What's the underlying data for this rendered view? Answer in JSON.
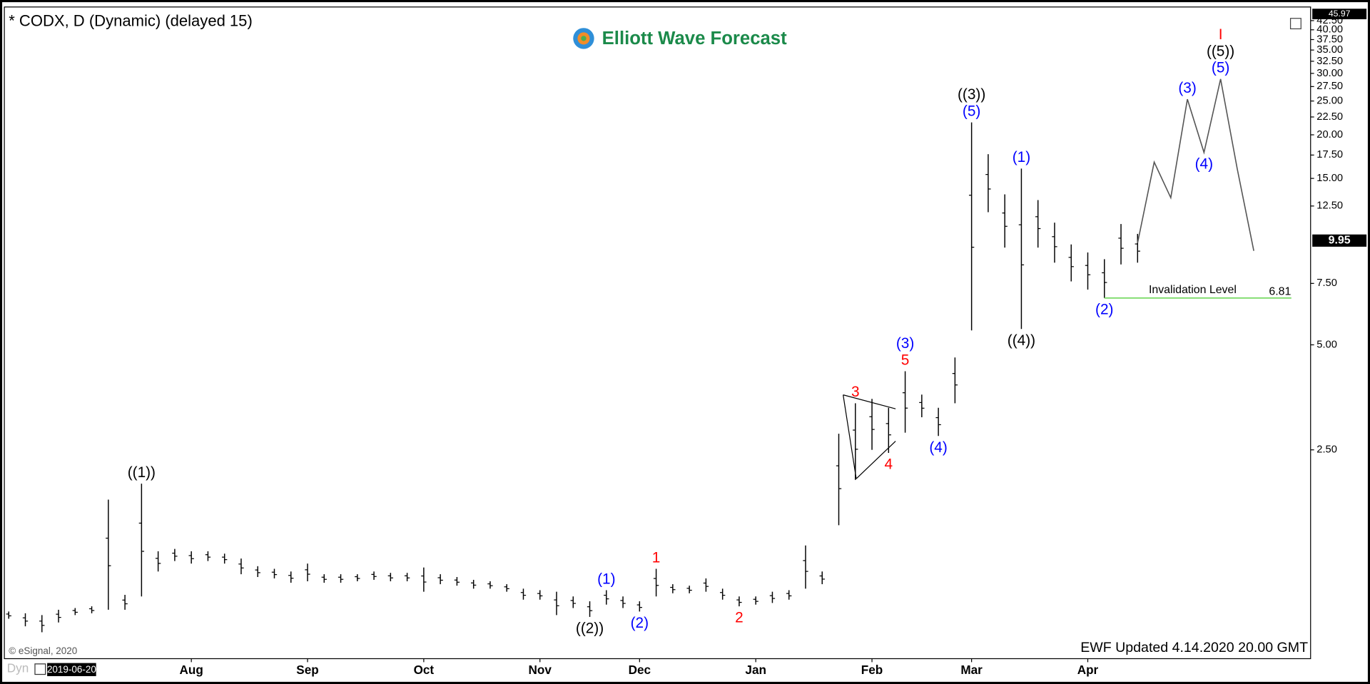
{
  "chart_data": {
    "type": "ohlc",
    "title": "* CODX, D (Dynamic) (delayed 15)",
    "brand": "Elliott Wave Forecast",
    "credit": "© eSignal, 2020",
    "updated": "EWF Updated 4.14.2020 20.00 GMT",
    "mode_label": "Dyn",
    "start_date": "2019-06-20",
    "log_scale": true,
    "grid": false,
    "bar_color": "#000000",
    "projection_color": "#555555",
    "categories": [
      null,
      null,
      null,
      null,
      null,
      null,
      null,
      null,
      null,
      null,
      null,
      "Aug",
      null,
      null,
      null,
      null,
      null,
      null,
      "Sep",
      null,
      null,
      null,
      null,
      null,
      null,
      "Oct",
      null,
      null,
      null,
      null,
      null,
      null,
      "Nov",
      null,
      null,
      null,
      null,
      null,
      "Dec",
      null,
      null,
      null,
      null,
      null,
      null,
      "Jan",
      null,
      null,
      null,
      null,
      null,
      null,
      "Feb",
      null,
      null,
      null,
      null,
      null,
      "Mar",
      null,
      null,
      null,
      null,
      null,
      null,
      "Apr",
      null,
      null,
      null,
      null,
      null,
      null,
      null,
      null,
      null,
      null
    ],
    "high": [
      0.86,
      0.85,
      0.84,
      0.87,
      0.88,
      0.89,
      1.8,
      0.96,
      2.0,
      1.28,
      1.3,
      1.28,
      1.28,
      1.26,
      1.22,
      1.16,
      1.14,
      1.12,
      1.18,
      1.1,
      1.1,
      1.1,
      1.12,
      1.11,
      1.11,
      1.15,
      1.1,
      1.08,
      1.06,
      1.05,
      1.03,
      1.0,
      0.99,
      0.98,
      0.95,
      0.92,
      0.99,
      0.95,
      0.92,
      1.14,
      1.03,
      1.02,
      1.07,
      1.0,
      0.95,
      0.95,
      0.98,
      0.99,
      1.33,
      1.12,
      2.78,
      3.4,
      3.5,
      3.3,
      4.2,
      3.6,
      3.3,
      4.6,
      21.7,
      17.6,
      13.5,
      16.0,
      13.0,
      11.2,
      9.7,
      9.2,
      8.8,
      11.1,
      10.4,
      null,
      null,
      null,
      null,
      null,
      null,
      null
    ],
    "low": [
      0.82,
      0.78,
      0.75,
      0.8,
      0.84,
      0.85,
      0.87,
      0.87,
      0.95,
      1.12,
      1.2,
      1.18,
      1.2,
      1.18,
      1.1,
      1.08,
      1.07,
      1.04,
      1.05,
      1.04,
      1.04,
      1.05,
      1.06,
      1.05,
      1.05,
      0.98,
      1.03,
      1.02,
      1.0,
      1.0,
      0.98,
      0.93,
      0.93,
      0.84,
      0.88,
      0.83,
      0.9,
      0.88,
      0.86,
      0.95,
      0.97,
      0.97,
      0.98,
      0.93,
      0.89,
      0.9,
      0.91,
      0.93,
      1.0,
      1.03,
      1.52,
      2.05,
      2.5,
      2.45,
      2.8,
      3.1,
      2.74,
      3.4,
      5.5,
      12.0,
      9.5,
      5.55,
      9.5,
      8.6,
      7.6,
      7.2,
      6.81,
      8.5,
      8.6,
      null,
      null,
      null,
      null,
      null,
      null,
      null
    ],
    "projection": [
      null,
      null,
      null,
      null,
      null,
      null,
      null,
      null,
      null,
      null,
      null,
      null,
      null,
      null,
      null,
      null,
      null,
      null,
      null,
      null,
      null,
      null,
      null,
      null,
      null,
      null,
      null,
      null,
      null,
      null,
      null,
      null,
      null,
      null,
      null,
      null,
      null,
      null,
      null,
      null,
      null,
      null,
      null,
      null,
      null,
      null,
      null,
      null,
      null,
      null,
      null,
      null,
      null,
      null,
      null,
      null,
      null,
      null,
      null,
      null,
      null,
      null,
      null,
      null,
      null,
      null,
      null,
      null,
      9.8,
      16.7,
      13.2,
      25.3,
      17.8,
      28.9,
      16.0,
      9.3
    ],
    "ylim": [
      0.63,
      46.5
    ],
    "yticks": [
      {
        "value": 2.5,
        "label": "2.50"
      },
      {
        "value": 5,
        "label": "5.00"
      },
      {
        "value": 7.5,
        "label": "7.50"
      },
      {
        "value": 12.5,
        "label": "12.50"
      },
      {
        "value": 15,
        "label": "15.00"
      },
      {
        "value": 17.5,
        "label": "17.50"
      },
      {
        "value": 20,
        "label": "20.00"
      },
      {
        "value": 22.5,
        "label": "22.50"
      },
      {
        "value": 25,
        "label": "25.00"
      },
      {
        "value": 27.5,
        "label": "27.50"
      },
      {
        "value": 30,
        "label": "30.00"
      },
      {
        "value": 32.5,
        "label": "32.50"
      },
      {
        "value": 35,
        "label": "35.00"
      },
      {
        "value": 37.5,
        "label": "37.50"
      },
      {
        "value": 40,
        "label": "40.00"
      },
      {
        "value": 42.5,
        "label": "42.50"
      }
    ],
    "last_price": 9.95,
    "top_price": 45.97,
    "invalidation": {
      "label": "Invalidation Level",
      "value": 6.81,
      "color": "#7ddc6a"
    },
    "annotations": [
      {
        "text": "((1))",
        "color": "#000000",
        "bar": 8,
        "side": "above"
      },
      {
        "text": "((2))",
        "color": "#000000",
        "bar": 35,
        "side": "below"
      },
      {
        "text": "(1)",
        "color": "#0000ff",
        "bar": 36,
        "side": "above"
      },
      {
        "text": "(2)",
        "color": "#0000ff",
        "bar": 38,
        "side": "below"
      },
      {
        "text": "1",
        "color": "#ff0000",
        "bar": 39,
        "side": "above"
      },
      {
        "text": "2",
        "color": "#ff0000",
        "bar": 44,
        "side": "below"
      },
      {
        "text": "3",
        "color": "#ff0000",
        "bar": 51,
        "side": "above"
      },
      {
        "text": "4",
        "color": "#ff0000",
        "bar": 53,
        "side": "below"
      },
      {
        "text": "5",
        "color": "#ff0000",
        "bar": 54,
        "side": "above"
      },
      {
        "text": "(3)",
        "color": "#0000ff",
        "bar": 54,
        "side": "above"
      },
      {
        "text": "(4)",
        "color": "#0000ff",
        "bar": 56,
        "side": "below"
      },
      {
        "text": "(5)",
        "color": "#0000ff",
        "bar": 58,
        "side": "above"
      },
      {
        "text": "((3))",
        "color": "#000000",
        "bar": 58,
        "side": "above"
      },
      {
        "text": "(1)",
        "color": "#0000ff",
        "bar": 61,
        "side": "above"
      },
      {
        "text": "((4))",
        "color": "#000000",
        "bar": 61,
        "side": "below"
      },
      {
        "text": "(2)",
        "color": "#0000ff",
        "bar": 66,
        "side": "below"
      },
      {
        "text": "(3)",
        "color": "#0000ff",
        "bar": 71,
        "side": "above"
      },
      {
        "text": "(4)",
        "color": "#0000ff",
        "bar": 72,
        "side": "below"
      },
      {
        "text": "(5)",
        "color": "#0000ff",
        "bar": 73,
        "side": "above"
      },
      {
        "text": "((5))",
        "color": "#000000",
        "bar": 73,
        "side": "above"
      },
      {
        "text": "I",
        "color": "#ff0000",
        "bar": 73,
        "side": "above"
      }
    ]
  }
}
